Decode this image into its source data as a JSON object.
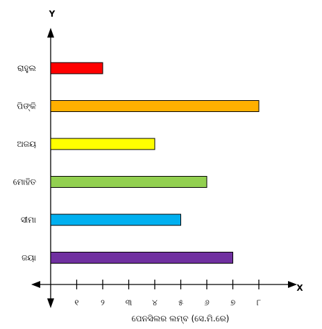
{
  "chart_data": {
    "type": "bar",
    "orientation": "horizontal",
    "categories": [
      "ରାହୁଲ",
      "ପିଙ୍କି",
      "ଅଜୟ",
      "ମୋହିତ",
      "ସୀମା",
      "ଜୟା"
    ],
    "values": [
      2,
      8,
      4,
      6,
      5,
      7
    ],
    "colors": [
      "#ff0000",
      "#ffb000",
      "#ffff00",
      "#92d050",
      "#00b0f0",
      "#7030a0"
    ],
    "x_tick_labels": [
      "୧",
      "୨",
      "୩",
      "୪",
      "୫",
      "୬",
      "୭",
      "୮"
    ],
    "x_tick_values": [
      1,
      2,
      3,
      4,
      5,
      6,
      7,
      8
    ],
    "xlabel": "ପେନସିଲର ଲମ୍ବ (ସେ.ମି.ରେ)",
    "x_axis_letter": "X",
    "y_axis_letter": "Y",
    "xlim": [
      0,
      8
    ],
    "grid": false,
    "legend": "none"
  }
}
